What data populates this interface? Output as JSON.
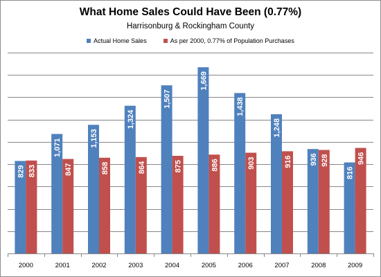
{
  "chart_data": {
    "type": "bar",
    "title": "What Home Sales Could Have Been (0.77%)",
    "subtitle": "Harrisonburg & Rockingham County",
    "categories": [
      "2000",
      "2001",
      "2002",
      "2003",
      "2004",
      "2005",
      "2006",
      "2007",
      "2008",
      "2009"
    ],
    "series": [
      {
        "name": "Actual Home Sales",
        "color": "#4f81bd",
        "values": [
          829,
          1071,
          1153,
          1324,
          1507,
          1669,
          1438,
          1248,
          936,
          816
        ],
        "labels": [
          "829",
          "1,071",
          "1,153",
          "1,324",
          "1,507",
          "1,669",
          "1,438",
          "1,248",
          "936",
          "816"
        ]
      },
      {
        "name": "As per 2000, 0.77% of Population Purchases",
        "color": "#c0504d",
        "values": [
          833,
          847,
          858,
          864,
          875,
          886,
          903,
          916,
          928,
          946
        ],
        "labels": [
          "833",
          "847",
          "858",
          "864",
          "875",
          "886",
          "903",
          "916",
          "928",
          "946"
        ]
      }
    ],
    "ylim": [
      0,
      1800
    ],
    "grid": true,
    "legend_position": "top"
  }
}
